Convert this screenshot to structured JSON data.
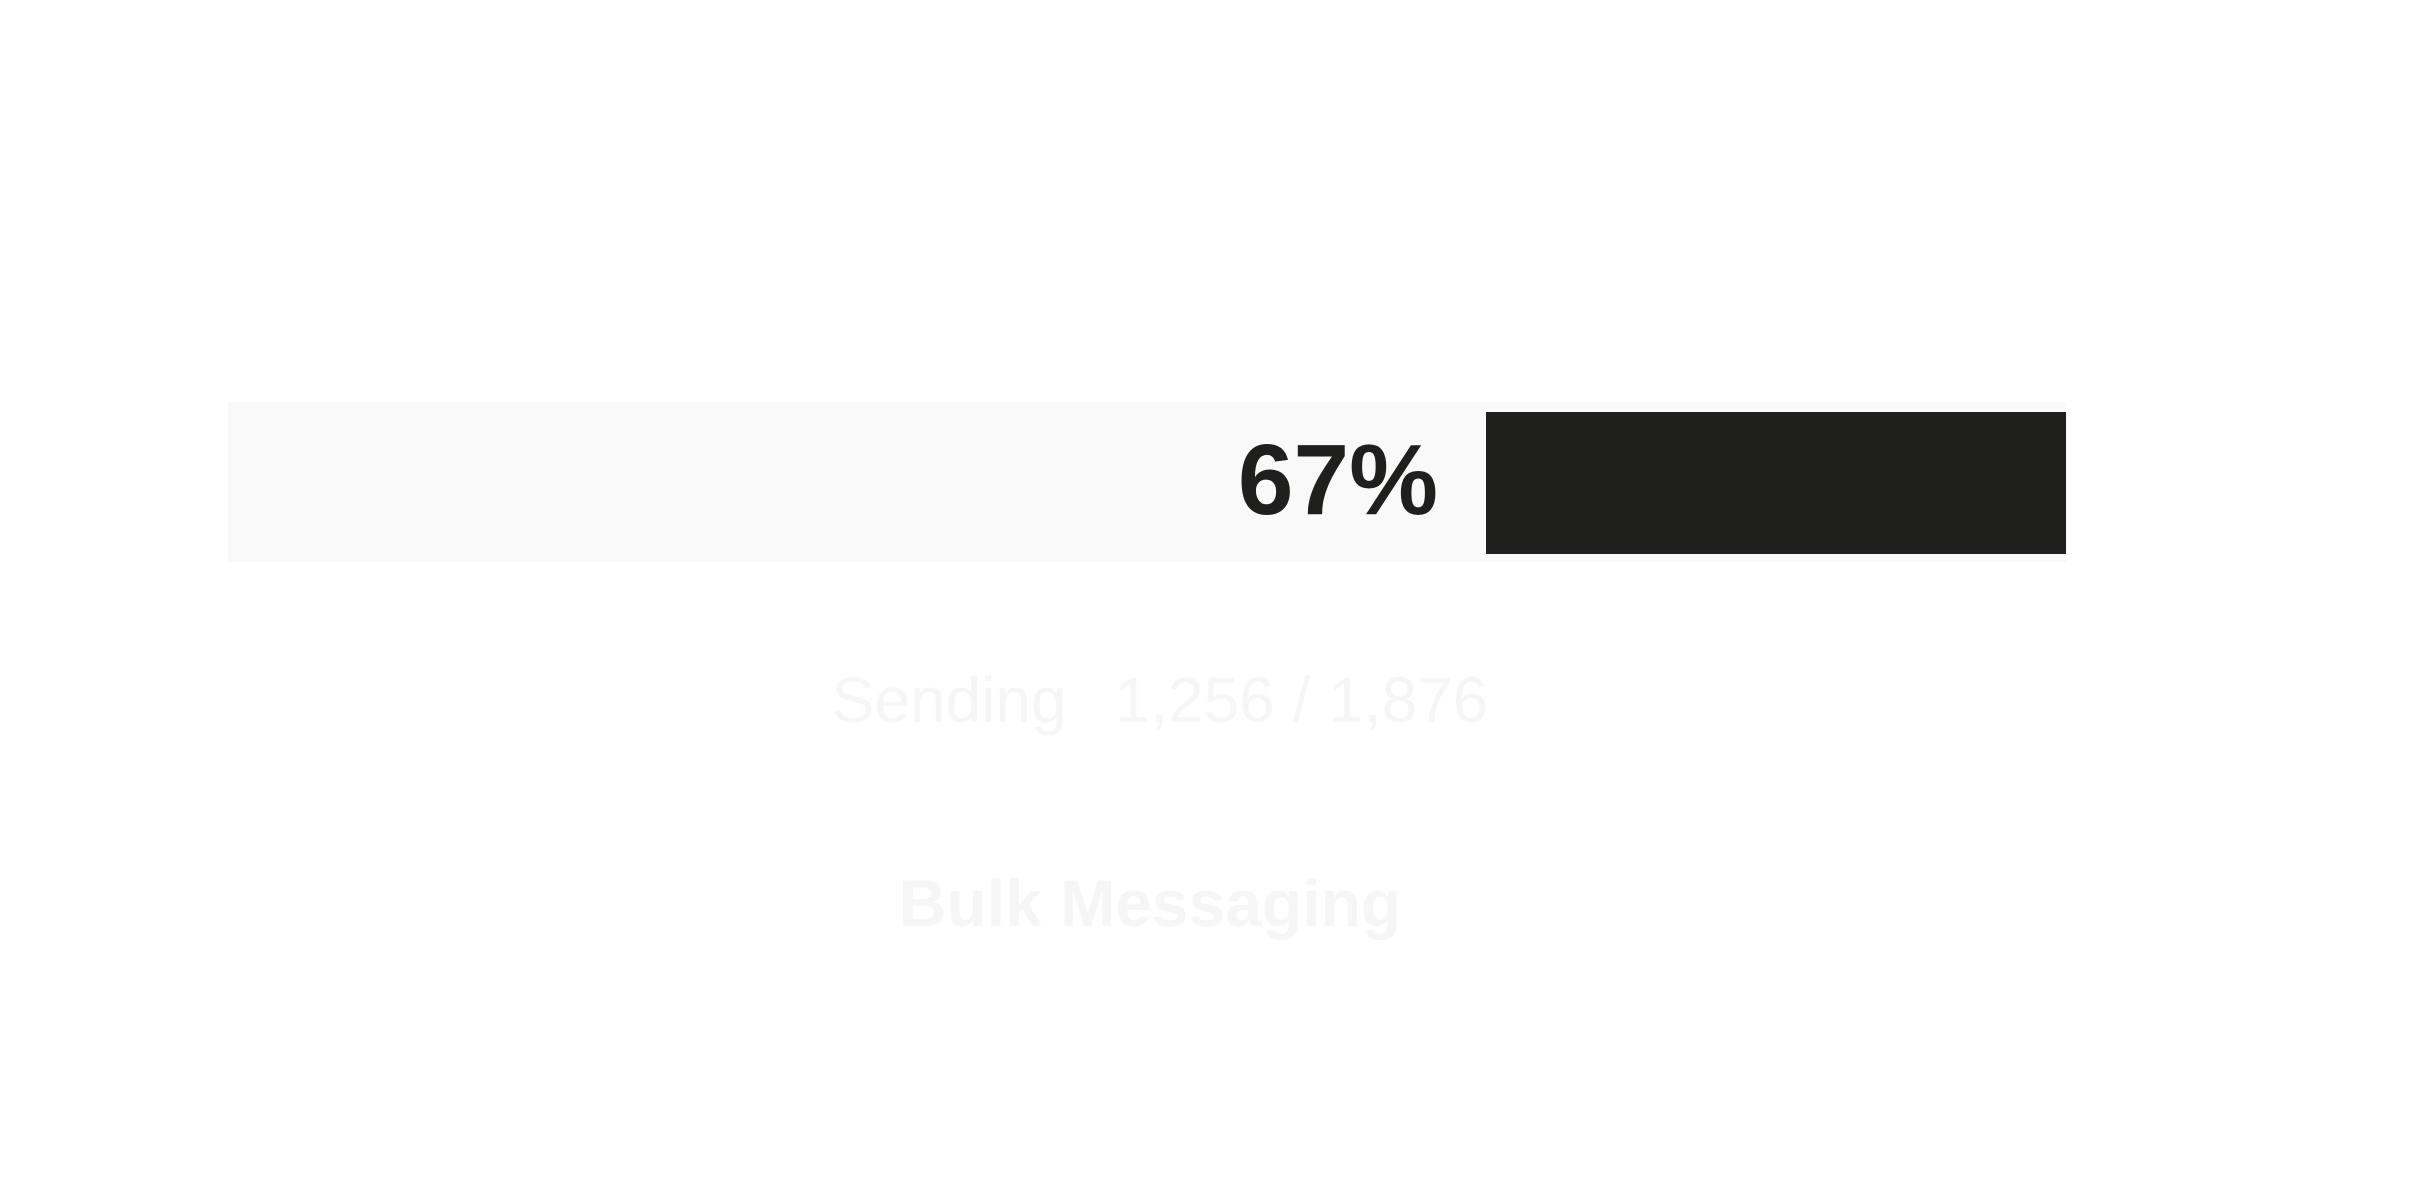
{
  "progress": {
    "fraction": 0.67,
    "label": "67%",
    "track_color": "#f9f9f9",
    "fill_color": "#1f1f1d",
    "text_color": "#1f1f1d"
  },
  "status": {
    "verb": "Sending",
    "count": "1,256 / 1,876",
    "color": "#f6f6f6"
  },
  "app": {
    "title": "Bulk Messaging"
  }
}
